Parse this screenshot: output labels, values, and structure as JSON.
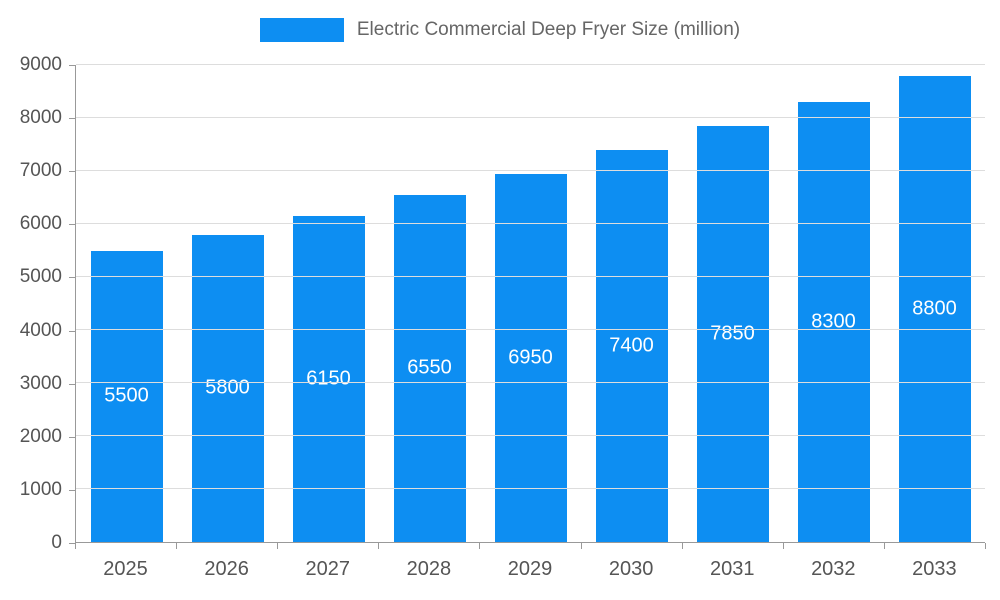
{
  "chart_data": {
    "type": "bar",
    "title": "Electric Commercial Deep Fryer Size (million)",
    "categories": [
      "2025",
      "2026",
      "2027",
      "2028",
      "2029",
      "2030",
      "2031",
      "2032",
      "2033"
    ],
    "values": [
      5500,
      5800,
      6150,
      6550,
      6950,
      7400,
      7850,
      8300,
      8800
    ],
    "xlabel": "",
    "ylabel": "",
    "ylim": [
      0,
      9000
    ],
    "yticks": [
      0,
      1000,
      2000,
      3000,
      4000,
      5000,
      6000,
      7000,
      8000,
      9000
    ],
    "grid": "horizontal",
    "legend_position": "top-center",
    "bar_color": "#0d8ef2",
    "bar_label_color": "#ffffff",
    "axis_text_color": "#555555",
    "grid_color": "#dddddd",
    "background_color": "#ffffff"
  }
}
